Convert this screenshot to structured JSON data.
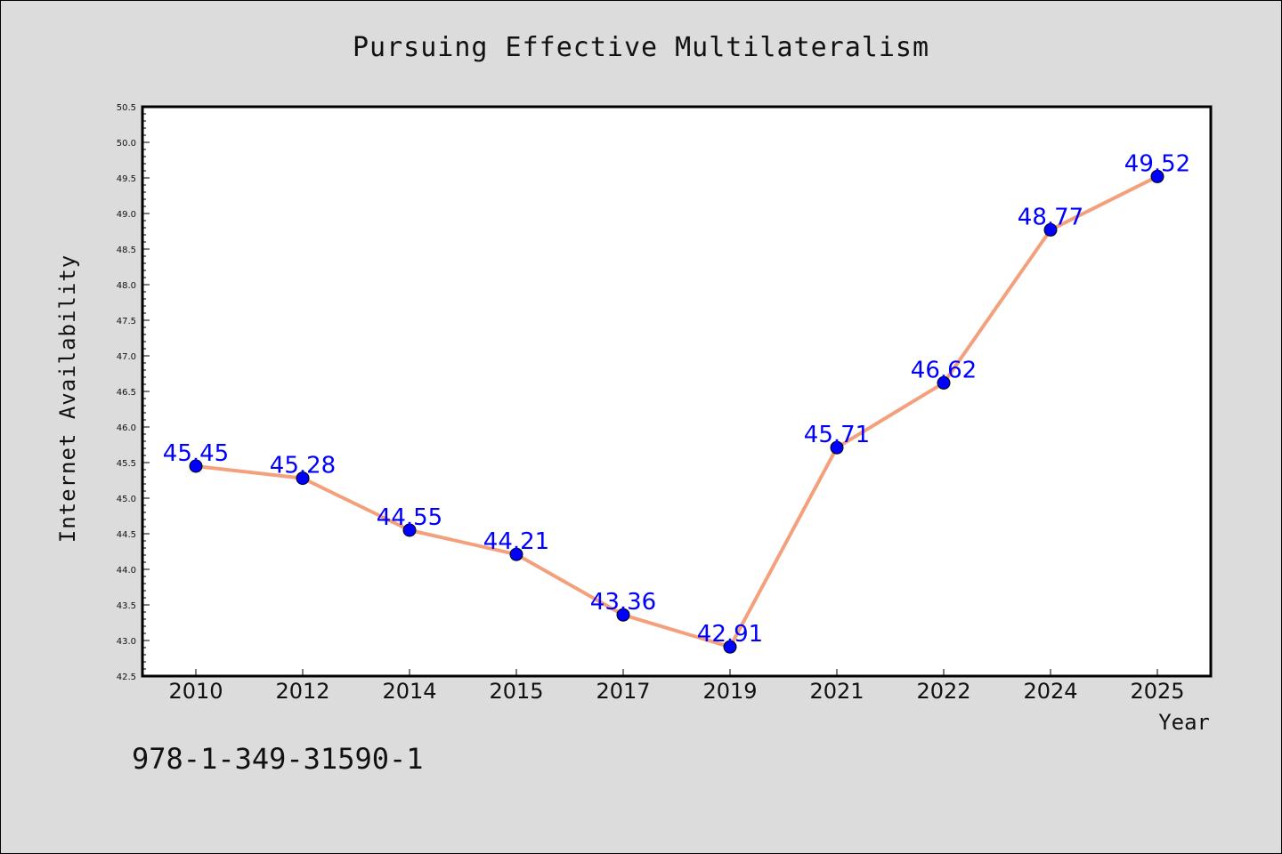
{
  "chart_data": {
    "type": "line",
    "title": "Pursuing Effective Multilateralism",
    "xlabel": "Year",
    "ylabel": "Internet Availability",
    "categories": [
      "2010",
      "2012",
      "2014",
      "2015",
      "2017",
      "2019",
      "2021",
      "2022",
      "2024",
      "2025"
    ],
    "series": [
      {
        "values": [
          45.45,
          45.28,
          44.55,
          44.21,
          43.36,
          42.91,
          45.71,
          46.62,
          48.77,
          49.52
        ],
        "labels": [
          "45.45",
          "45.28",
          "44.55",
          "44.21",
          "43.36",
          "42.91",
          "45.71",
          "46.62",
          "48.77",
          "49.52"
        ]
      }
    ],
    "ylim": [
      42.5,
      50.5
    ],
    "yticks": [
      "42.5",
      "43.0",
      "43.5",
      "44.0",
      "44.5",
      "45.0",
      "45.5",
      "46.0",
      "46.5",
      "47.0",
      "47.5",
      "48.0",
      "48.5",
      "49.0",
      "49.5",
      "50.0",
      "50.5"
    ],
    "grid": false,
    "legend": "none",
    "colors": {
      "line": "#f4a07c",
      "marker": "#0000ff",
      "data_label": "#0000ff",
      "background": "#dcdcdc",
      "plot_area": "#ffffff"
    }
  },
  "footer_text": "978-1-349-31590-1"
}
